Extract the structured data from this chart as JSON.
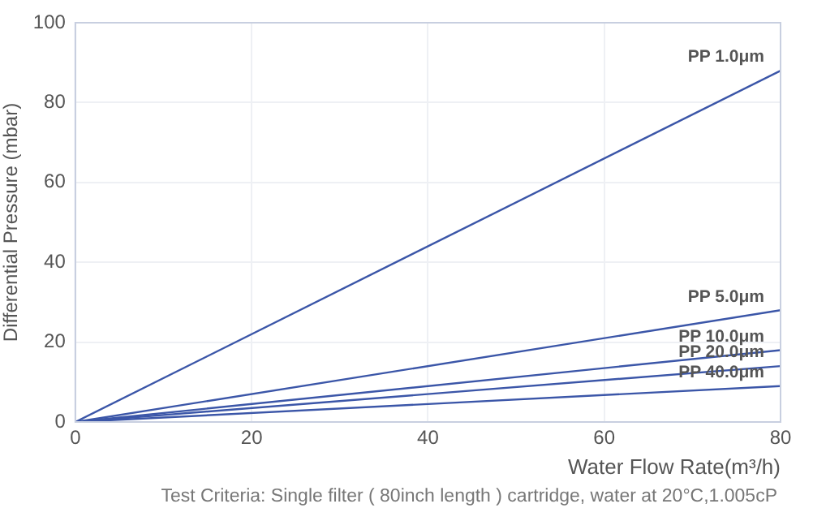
{
  "chart_data": {
    "type": "line",
    "xlabel": "Water Flow Rate(m³/h)",
    "ylabel": "Differential Pressure (mbar)",
    "xlim": [
      0,
      80
    ],
    "xticks": [
      0,
      20,
      40,
      60,
      80
    ],
    "ylim": [
      0,
      100
    ],
    "yticks": [
      0,
      20,
      40,
      60,
      80,
      100
    ],
    "grid": true,
    "legend": false,
    "marker": "none",
    "line_style": "solid",
    "annotations": [
      "Test Criteria: Single filter ( 80inch length ) cartridge, water at 20°C,1.005cP"
    ],
    "x": [
      0,
      80
    ],
    "series": [
      {
        "name": "PP 1.0μm",
        "color": "#3b56a8",
        "values": [
          0,
          88
        ]
      },
      {
        "name": "PP 5.0μm",
        "color": "#3b56a8",
        "values": [
          0,
          28
        ]
      },
      {
        "name": "PP 10.0μm",
        "color": "#3b56a8",
        "values": [
          0,
          18
        ]
      },
      {
        "name": "PP 20.0μm",
        "color": "#3b56a8",
        "values": [
          0,
          14
        ]
      },
      {
        "name": "PP 40.0μm",
        "color": "#3b56a8",
        "values": [
          0,
          9
        ]
      }
    ]
  }
}
